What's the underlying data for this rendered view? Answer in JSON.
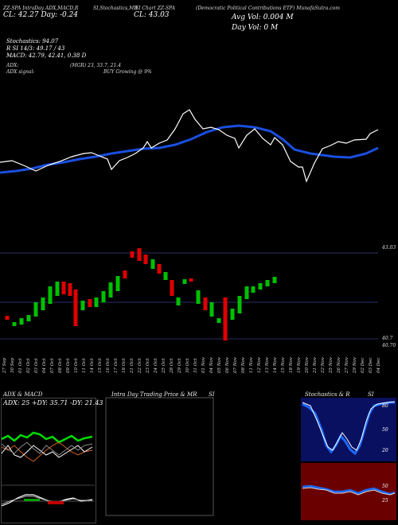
{
  "header": {
    "line1_left": "ZZ-SPA IntraDay ADX,MACD,R",
    "line1_mid": "SI,Stochastics,MR",
    "line1_symbol": "SI Chart ZZ-SPA",
    "line1_right": "(Democratic Political Contributions ETF) MunafaSutra.com",
    "price_left": "CL: 42.27 Day: -0.24",
    "price_close": "CL: 43.03",
    "avg_vol": "Avg Vol: 0.004  M",
    "day_vol": "Day Vol: 0  M"
  },
  "indicators": {
    "stoch": "Stochastics: 94.07",
    "rsi": "R              SI 14/3: 49.17 / 43",
    "macd": "MACD: 42.79, 42.41, 0.38  D",
    "adx": "ADX:",
    "adx_vals": "(MGR) 23, 33.7, 21.4",
    "adx_signal": "ADX  signal:",
    "buy_signal": "BUY Growing @ 9%"
  },
  "price_axis": {
    "top": "43.03",
    "bottom1": "40.7",
    "bottom2": "40.70"
  },
  "dates": [
    "27 Sep",
    "30 Sep",
    "01 Oct",
    "02 Oct",
    "03 Oct",
    "04 Oct",
    "07 Oct",
    "08 Oct",
    "09 Oct",
    "10 Oct",
    "11 Oct",
    "14 Oct",
    "15 Oct",
    "16 Oct",
    "17 Oct",
    "18 Oct",
    "21 Oct",
    "22 Oct",
    "23 Oct",
    "24 Oct",
    "25 Oct",
    "28 Oct",
    "29 Oct",
    "30 Oct",
    "31 Oct",
    "01 Nov",
    "04 Nov",
    "05 Nov",
    "06 Nov",
    "07 Nov",
    "08 Nov",
    "11 Nov",
    "12 Nov",
    "13 Nov",
    "14 Nov",
    "15 Nov",
    "18 Nov",
    "19 Nov",
    "20 Nov",
    "21 Nov",
    "22 Nov",
    "25 Nov",
    "26 Nov",
    "27 Nov",
    "29 Nov",
    "02 Dec",
    "03 Dec",
    "04 Dec"
  ],
  "panels": {
    "adx_title": "ADX  & MACD",
    "adx_readout": "ADX: 25 +DY: 35.71 -DY: 21.43",
    "intraday_title": "Intra  Day Trading Price  & MR",
    "intraday_title2": "SI",
    "stoch_title": "Stochastics & R",
    "stoch_title2": "SI",
    "stoch_levels": [
      "80",
      "50",
      "20"
    ],
    "rsi_levels": [
      "50",
      "25"
    ]
  },
  "colors": {
    "ma": "#1a4fe0",
    "up": "#00c000",
    "down": "#e00000",
    "stoch_bg": "#0a1060",
    "rsi_bg": "#6a0000"
  }
}
